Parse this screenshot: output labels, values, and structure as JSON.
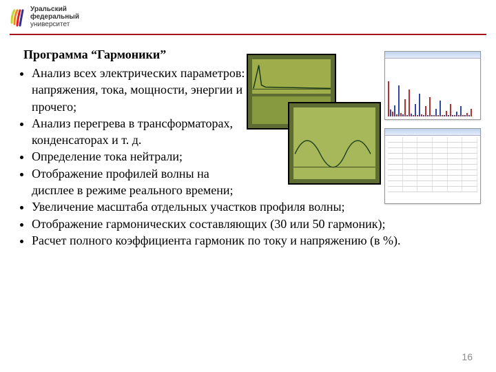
{
  "header": {
    "logo_stripes": [
      "#c1d72e",
      "#f58220",
      "#e31b23",
      "#2e3192"
    ],
    "line1": "Уральский",
    "line2": "федеральный",
    "line3": "университет",
    "rule_color": "#a8121a"
  },
  "title": "Программа “Гармоники”",
  "bullets_narrow": [
    "Анализ всех электрических параметров: напряжения, тока, мощности, энергии и прочего;",
    "Анализ перегрева в трансформаторах, конденсаторах и т. д.",
    "Определение тока нейтрали;",
    "Отображение профилей волны на дисплее в режиме реального времени;"
  ],
  "bullets_wide": [
    "Увеличение масштаба отдельных участков профиля волны;",
    "Отображение гармонических составляющих (30 или 50 гармоник);",
    "Расчет полного коэффициента гармоник по току и напряжению (в %)."
  ],
  "figure": {
    "device_bg": "#5e6b32",
    "device_screen": "#9fae4a",
    "win_titlebar_from": "#bcd3ef",
    "win_titlebar_to": "#e6eefb",
    "bar_colors": [
      "#b23030",
      "#2f4aa0",
      "#b23030",
      "#2f4aa0"
    ],
    "bar_chart_heights": [
      62,
      12,
      8,
      20,
      4,
      55,
      6,
      4,
      30,
      3,
      48,
      5,
      3,
      22,
      2,
      40,
      4,
      2,
      18,
      2,
      34,
      3,
      2,
      14,
      2,
      28,
      3,
      2,
      10,
      2,
      22,
      2,
      2,
      8,
      2,
      18,
      2,
      2,
      6,
      2,
      14
    ],
    "table_cols": 6,
    "table_rows": 10
  },
  "page_number": "16",
  "colors": {
    "text": "#000000",
    "pagenum": "#8a8a8a",
    "bg": "#ffffff"
  }
}
